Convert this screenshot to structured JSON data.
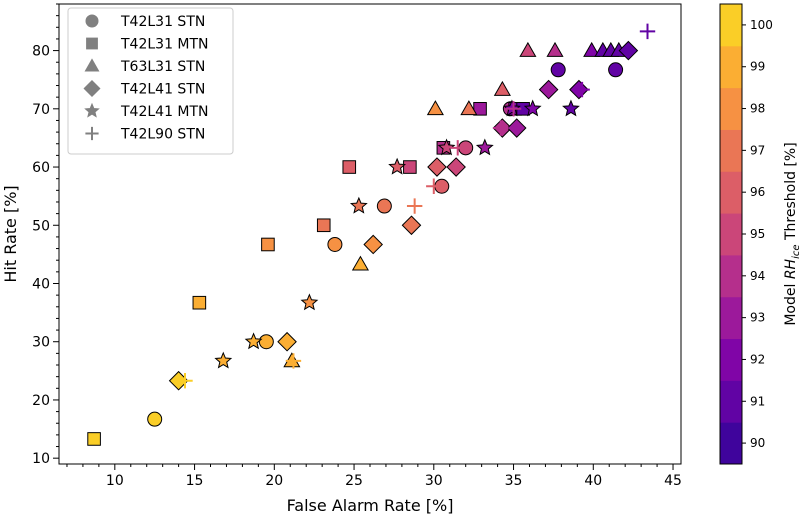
{
  "chart_data": {
    "type": "scatter",
    "title": "",
    "xlabel": "False Alarm Rate [%]",
    "ylabel": "Hit Rate [%]",
    "xlim": [
      6.5,
      45.5
    ],
    "ylim": [
      9,
      88
    ],
    "xticks": [
      10,
      15,
      20,
      25,
      30,
      35,
      40,
      45
    ],
    "yticks": [
      10,
      20,
      30,
      40,
      50,
      60,
      70,
      80
    ],
    "grid": false,
    "legend_placement": "top-left",
    "colorbar": {
      "label_prefix": "Model ",
      "label_var": "RH",
      "label_sub": "ice",
      "label_suffix": " Threshold [%]",
      "min": 89.5,
      "max": 100.5,
      "ticks": [
        90,
        91,
        92,
        93,
        94,
        95,
        96,
        97,
        98,
        99,
        100
      ],
      "colormap": "plasma"
    },
    "series": [
      {
        "name": "T42L31 STN",
        "marker": "circle",
        "points": [
          {
            "x": 12.5,
            "y": 16.7,
            "t": 100
          },
          {
            "x": 19.5,
            "y": 30.0,
            "t": 99
          },
          {
            "x": 23.8,
            "y": 46.7,
            "t": 98
          },
          {
            "x": 26.9,
            "y": 53.3,
            "t": 97
          },
          {
            "x": 30.5,
            "y": 56.7,
            "t": 96
          },
          {
            "x": 32.0,
            "y": 63.3,
            "t": 95
          },
          {
            "x": 34.8,
            "y": 70.0,
            "t": 94
          },
          {
            "x": 37.8,
            "y": 76.7,
            "t": 91
          },
          {
            "x": 41.4,
            "y": 76.7,
            "t": 91
          }
        ]
      },
      {
        "name": "T42L31 MTN",
        "marker": "square",
        "points": [
          {
            "x": 8.7,
            "y": 13.3,
            "t": 100
          },
          {
            "x": 15.3,
            "y": 36.7,
            "t": 99
          },
          {
            "x": 19.6,
            "y": 46.7,
            "t": 98
          },
          {
            "x": 23.1,
            "y": 50.0,
            "t": 97
          },
          {
            "x": 24.7,
            "y": 60.0,
            "t": 96
          },
          {
            "x": 28.5,
            "y": 60.0,
            "t": 95
          },
          {
            "x": 30.6,
            "y": 63.3,
            "t": 94
          },
          {
            "x": 32.9,
            "y": 70.0,
            "t": 93
          },
          {
            "x": 35.1,
            "y": 70.0,
            "t": 92
          },
          {
            "x": 35.6,
            "y": 70.0,
            "t": 91
          }
        ]
      },
      {
        "name": "T63L31 STN",
        "marker": "triangle",
        "points": [
          {
            "x": 21.1,
            "y": 26.7,
            "t": 99
          },
          {
            "x": 25.4,
            "y": 43.3,
            "t": 99
          },
          {
            "x": 30.1,
            "y": 70.0,
            "t": 98
          },
          {
            "x": 32.2,
            "y": 70.0,
            "t": 97
          },
          {
            "x": 34.3,
            "y": 73.3,
            "t": 96
          },
          {
            "x": 35.9,
            "y": 80.0,
            "t": 95
          },
          {
            "x": 37.6,
            "y": 80.0,
            "t": 94
          },
          {
            "x": 39.9,
            "y": 80.0,
            "t": 92
          },
          {
            "x": 40.6,
            "y": 80.0,
            "t": 91
          },
          {
            "x": 41.1,
            "y": 80.0,
            "t": 91
          },
          {
            "x": 41.6,
            "y": 80.0,
            "t": 91
          }
        ]
      },
      {
        "name": "T42L41 STN",
        "marker": "diamond",
        "points": [
          {
            "x": 14.0,
            "y": 23.3,
            "t": 100
          },
          {
            "x": 20.8,
            "y": 30.0,
            "t": 99
          },
          {
            "x": 26.2,
            "y": 46.7,
            "t": 98
          },
          {
            "x": 28.6,
            "y": 50.0,
            "t": 97
          },
          {
            "x": 30.2,
            "y": 60.0,
            "t": 96
          },
          {
            "x": 31.4,
            "y": 60.0,
            "t": 95
          },
          {
            "x": 34.3,
            "y": 66.7,
            "t": 94
          },
          {
            "x": 35.2,
            "y": 66.7,
            "t": 93
          },
          {
            "x": 37.2,
            "y": 73.3,
            "t": 93
          },
          {
            "x": 39.1,
            "y": 73.3,
            "t": 92
          },
          {
            "x": 42.2,
            "y": 80.0,
            "t": 91
          }
        ]
      },
      {
        "name": "T42L41 MTN",
        "marker": "star",
        "points": [
          {
            "x": 16.8,
            "y": 26.7,
            "t": 99
          },
          {
            "x": 18.7,
            "y": 30.0,
            "t": 99
          },
          {
            "x": 22.2,
            "y": 36.7,
            "t": 98
          },
          {
            "x": 25.3,
            "y": 53.3,
            "t": 97
          },
          {
            "x": 27.7,
            "y": 60.0,
            "t": 96
          },
          {
            "x": 30.8,
            "y": 63.3,
            "t": 95
          },
          {
            "x": 33.2,
            "y": 63.3,
            "t": 93
          },
          {
            "x": 34.9,
            "y": 70.0,
            "t": 92
          },
          {
            "x": 36.2,
            "y": 70.0,
            "t": 92
          },
          {
            "x": 38.6,
            "y": 70.0,
            "t": 91
          }
        ]
      },
      {
        "name": "T42L90 STN",
        "marker": "plus",
        "points": [
          {
            "x": 14.4,
            "y": 23.3,
            "t": 100
          },
          {
            "x": 21.2,
            "y": 26.7,
            "t": 99
          },
          {
            "x": 28.8,
            "y": 53.3,
            "t": 97
          },
          {
            "x": 30.0,
            "y": 56.7,
            "t": 96
          },
          {
            "x": 31.5,
            "y": 63.3,
            "t": 95
          },
          {
            "x": 34.2,
            "y": 66.7,
            "t": 94
          },
          {
            "x": 35.0,
            "y": 70.0,
            "t": 94
          },
          {
            "x": 37.2,
            "y": 73.3,
            "t": 93
          },
          {
            "x": 39.3,
            "y": 73.3,
            "t": 92
          },
          {
            "x": 43.4,
            "y": 83.3,
            "t": 91
          }
        ]
      }
    ]
  }
}
